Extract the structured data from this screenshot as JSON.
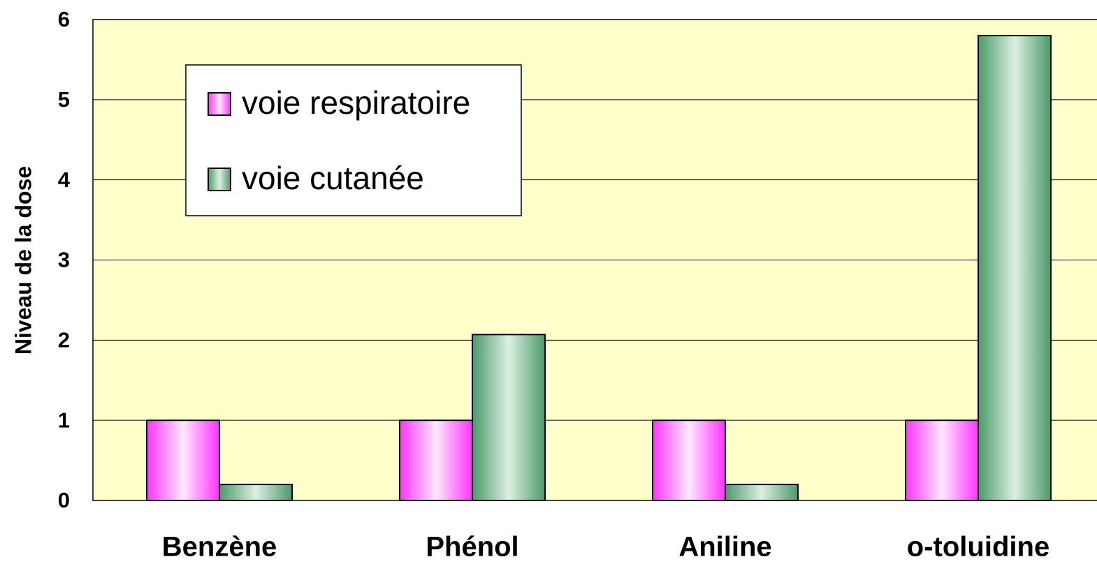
{
  "chart_data": {
    "type": "bar",
    "ylabel": "Niveau de la dose",
    "categories": [
      "Benzène",
      "Phénol",
      "Aniline",
      "o-toluidine"
    ],
    "series": [
      {
        "name": "voie respiratoire",
        "color": "#ff33ff",
        "values": [
          1,
          1,
          1,
          1
        ]
      },
      {
        "name": "voie cutanée",
        "color": "#4a9a6a",
        "values": [
          0.2,
          2.07,
          0.2,
          5.8
        ]
      }
    ],
    "ylim": [
      0,
      6
    ],
    "yticks": [
      0,
      1,
      2,
      3,
      4,
      5,
      6
    ],
    "grid": true,
    "legend": "top-left"
  }
}
